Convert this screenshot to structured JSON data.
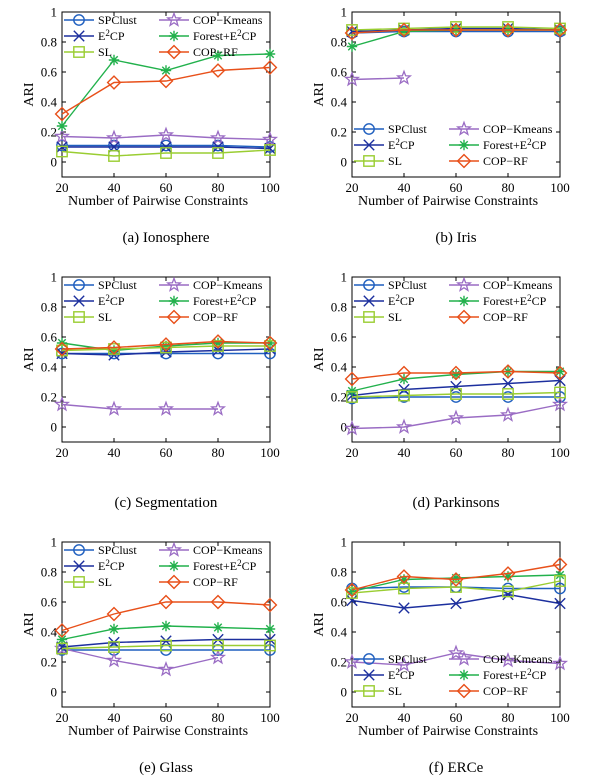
{
  "series_styles": [
    {
      "name": "SPClust",
      "color": "#1f5fbf",
      "marker": "circle"
    },
    {
      "name": "COP−Kmeans",
      "color": "#9a6cc4",
      "marker": "star"
    },
    {
      "name": "E²CP",
      "color": "#1c2f9e",
      "marker": "x"
    },
    {
      "name": "Forest+E²CP",
      "color": "#22b14c",
      "marker": "asterisk"
    },
    {
      "name": "SL",
      "color": "#9acd32",
      "marker": "square"
    },
    {
      "name": "COP−RF",
      "color": "#e8501a",
      "marker": "diamond"
    }
  ],
  "chart_data": [
    {
      "type": "line",
      "caption": "(a)  Ionosphere",
      "xlabel": "Number of Pairwise Constraints",
      "ylabel": "ARI",
      "x": [
        20,
        40,
        60,
        80,
        100
      ],
      "xlim": [
        20,
        100
      ],
      "ylim": [
        -0.1,
        1
      ],
      "xticks": [
        "20",
        "40",
        "60",
        "80",
        "100"
      ],
      "yticks": [
        "0",
        "0.2",
        "0.4",
        "0.6",
        "0.8",
        "1"
      ],
      "legend": "top",
      "series": [
        {
          "name": "SPClust",
          "values": [
            0.11,
            0.11,
            0.11,
            0.11,
            0.1
          ]
        },
        {
          "name": "COP−Kmeans",
          "values": [
            0.17,
            0.16,
            0.18,
            0.16,
            0.15
          ]
        },
        {
          "name": "E²CP",
          "values": [
            0.1,
            0.1,
            0.1,
            0.1,
            0.09
          ]
        },
        {
          "name": "Forest+E²CP",
          "values": [
            0.24,
            0.68,
            0.61,
            0.71,
            0.72
          ]
        },
        {
          "name": "SL",
          "values": [
            0.07,
            0.04,
            0.06,
            0.06,
            0.08
          ]
        },
        {
          "name": "COP−RF",
          "values": [
            0.32,
            0.53,
            0.54,
            0.61,
            0.63
          ]
        }
      ]
    },
    {
      "type": "line",
      "caption": "(b)  Iris",
      "xlabel": "Number of Pairwise Constraints",
      "ylabel": "ARI",
      "x": [
        20,
        40,
        60,
        80,
        100
      ],
      "xlim": [
        20,
        100
      ],
      "ylim": [
        -0.1,
        1
      ],
      "xticks": [
        "20",
        "40",
        "60",
        "80",
        "100"
      ],
      "yticks": [
        "0",
        "0.2",
        "0.4",
        "0.6",
        "0.8",
        "1"
      ],
      "legend": "bottom",
      "series": [
        {
          "name": "SPClust",
          "values": [
            0.86,
            0.87,
            0.87,
            0.87,
            0.87
          ]
        },
        {
          "name": "COP−Kmeans",
          "values": [
            0.55,
            0.56,
            null,
            null,
            null
          ]
        },
        {
          "name": "E²CP",
          "values": [
            0.87,
            0.88,
            0.89,
            0.89,
            0.88
          ]
        },
        {
          "name": "Forest+E²CP",
          "values": [
            0.77,
            0.87,
            0.88,
            0.88,
            0.88
          ]
        },
        {
          "name": "SL",
          "values": [
            0.88,
            0.89,
            0.9,
            0.9,
            0.89
          ]
        },
        {
          "name": "COP−RF",
          "values": [
            0.86,
            0.88,
            0.88,
            0.88,
            0.88
          ]
        }
      ]
    },
    {
      "type": "line",
      "caption": "(c)  Segmentation",
      "xlabel": "",
      "ylabel": "ARI",
      "x": [
        20,
        40,
        60,
        80,
        100
      ],
      "xlim": [
        20,
        100
      ],
      "ylim": [
        -0.1,
        1
      ],
      "xticks": [
        "20",
        "40",
        "60",
        "80",
        "100"
      ],
      "yticks": [
        "0",
        "0.2",
        "0.4",
        "0.6",
        "0.8",
        "1"
      ],
      "legend": "top",
      "series": [
        {
          "name": "SPClust",
          "values": [
            0.49,
            0.49,
            0.49,
            0.49,
            0.49
          ]
        },
        {
          "name": "COP−Kmeans",
          "values": [
            0.15,
            0.12,
            0.12,
            0.12,
            null
          ]
        },
        {
          "name": "E²CP",
          "values": [
            0.49,
            0.48,
            0.5,
            0.51,
            0.52
          ]
        },
        {
          "name": "Forest+E²CP",
          "values": [
            0.56,
            0.51,
            0.54,
            0.56,
            0.56
          ]
        },
        {
          "name": "SL",
          "values": [
            0.51,
            0.52,
            0.53,
            0.54,
            0.54
          ]
        },
        {
          "name": "COP−RF",
          "values": [
            0.52,
            0.53,
            0.55,
            0.57,
            0.56
          ]
        }
      ]
    },
    {
      "type": "line",
      "caption": "(d)  Parkinsons",
      "xlabel": "",
      "ylabel": "ARI",
      "x": [
        20,
        40,
        60,
        80,
        100
      ],
      "xlim": [
        20,
        100
      ],
      "ylim": [
        -0.1,
        1
      ],
      "xticks": [
        "20",
        "40",
        "60",
        "80",
        "100"
      ],
      "yticks": [
        "0",
        "0.2",
        "0.4",
        "0.6",
        "0.8",
        "1"
      ],
      "legend": "top",
      "series": [
        {
          "name": "SPClust",
          "values": [
            0.19,
            0.2,
            0.2,
            0.2,
            0.2
          ]
        },
        {
          "name": "COP−Kmeans",
          "values": [
            -0.01,
            0.0,
            0.06,
            0.08,
            0.15
          ]
        },
        {
          "name": "E²CP",
          "values": [
            0.21,
            0.25,
            0.27,
            0.29,
            0.31
          ]
        },
        {
          "name": "Forest+E²CP",
          "values": [
            0.24,
            0.32,
            0.35,
            0.37,
            0.37
          ]
        },
        {
          "name": "SL",
          "values": [
            0.2,
            0.21,
            0.22,
            0.22,
            0.23
          ]
        },
        {
          "name": "COP−RF",
          "values": [
            0.32,
            0.36,
            0.36,
            0.37,
            0.36
          ]
        }
      ]
    },
    {
      "type": "line",
      "caption": "(e)  Glass",
      "xlabel": "Number of Pairwise Constraints",
      "ylabel": "ARI",
      "x": [
        20,
        40,
        60,
        80,
        100
      ],
      "xlim": [
        20,
        100
      ],
      "ylim": [
        -0.1,
        1
      ],
      "xticks": [
        "20",
        "40",
        "60",
        "80",
        "100"
      ],
      "yticks": [
        "0",
        "0.2",
        "0.4",
        "0.6",
        "0.8",
        "1"
      ],
      "legend": "top",
      "series": [
        {
          "name": "SPClust",
          "values": [
            0.28,
            0.28,
            0.28,
            0.28,
            0.28
          ]
        },
        {
          "name": "COP−Kmeans",
          "values": [
            0.29,
            0.21,
            0.15,
            0.23,
            null
          ]
        },
        {
          "name": "E²CP",
          "values": [
            0.3,
            0.33,
            0.34,
            0.35,
            0.35
          ]
        },
        {
          "name": "Forest+E²CP",
          "values": [
            0.35,
            0.42,
            0.44,
            0.43,
            0.42
          ]
        },
        {
          "name": "SL",
          "values": [
            0.29,
            0.3,
            0.31,
            0.31,
            0.31
          ]
        },
        {
          "name": "COP−RF",
          "values": [
            0.41,
            0.52,
            0.6,
            0.6,
            0.58
          ]
        }
      ]
    },
    {
      "type": "line",
      "caption": "(f)  ERCe",
      "xlabel": "Number of Pairwise Constraints",
      "ylabel": "ARI",
      "x": [
        20,
        40,
        60,
        80,
        100
      ],
      "xlim": [
        20,
        100
      ],
      "ylim": [
        -0.1,
        1
      ],
      "xticks": [
        "20",
        "40",
        "60",
        "80",
        "100"
      ],
      "yticks": [
        "0",
        "0.2",
        "0.4",
        "0.6",
        "0.8",
        "1"
      ],
      "legend": "bottom",
      "series": [
        {
          "name": "SPClust",
          "values": [
            0.69,
            0.7,
            0.7,
            0.69,
            0.69
          ]
        },
        {
          "name": "COP−Kmeans",
          "values": [
            0.2,
            0.18,
            0.26,
            0.21,
            0.19
          ]
        },
        {
          "name": "E²CP",
          "values": [
            0.61,
            0.56,
            0.59,
            0.65,
            0.59
          ]
        },
        {
          "name": "Forest+E²CP",
          "values": [
            0.67,
            0.75,
            0.76,
            0.77,
            0.78
          ]
        },
        {
          "name": "SL",
          "values": [
            0.66,
            0.69,
            0.7,
            0.67,
            0.74
          ]
        },
        {
          "name": "COP−RF",
          "values": [
            0.68,
            0.77,
            0.75,
            0.79,
            0.85
          ]
        }
      ]
    }
  ]
}
